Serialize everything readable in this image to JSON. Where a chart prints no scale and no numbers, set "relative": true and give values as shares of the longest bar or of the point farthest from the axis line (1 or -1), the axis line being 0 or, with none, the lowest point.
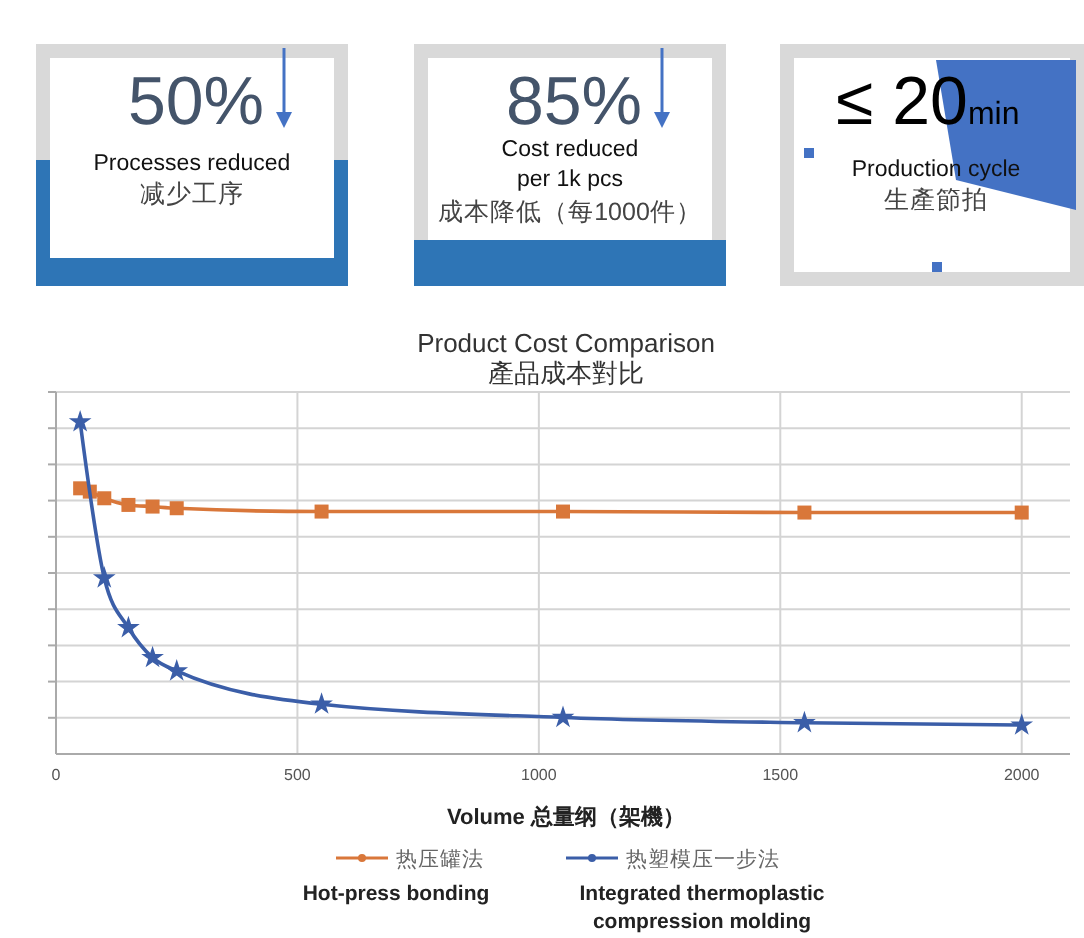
{
  "chart_data": [
    {
      "type": "other",
      "title": "50%",
      "annotations": [
        "Processes reduced",
        "减少工序"
      ]
    },
    {
      "type": "other",
      "title": "85%",
      "annotations": [
        "Cost reduced\nper 1k pcs",
        "成本降低（每1000件）"
      ]
    },
    {
      "type": "other",
      "title": "≤ 20",
      "subtitle": "min",
      "annotations": [
        "Production cycle",
        "生產節拍"
      ]
    },
    {
      "type": "line",
      "title": "Product Cost Comparison\n產品成本對比",
      "xlabel": "Volume 总量纲（架機）",
      "relative": true,
      "xlim": [
        0,
        2100
      ],
      "xticks": [
        0,
        500,
        1000,
        1500,
        2000
      ],
      "grid": true,
      "legend": "bottom",
      "series": [
        {
          "name": "热压罐法\nHot-press bonding",
          "color": "#d9773a",
          "marker": "square",
          "x": [
            50,
            70,
            100,
            150,
            200,
            250,
            550,
            1050,
            1550,
            2000
          ],
          "values": [
            0.8,
            0.79,
            0.77,
            0.75,
            0.745,
            0.74,
            0.73,
            0.73,
            0.727,
            0.727
          ]
        },
        {
          "name": "热塑模压一步法\nIntegrated thermoplastic\ncompression molding",
          "color": "#3b5ea8",
          "marker": "star",
          "x": [
            50,
            100,
            150,
            200,
            250,
            550,
            1050,
            1550,
            2000
          ],
          "values": [
            1,
            0.53,
            0.38,
            0.29,
            0.25,
            0.15,
            0.11,
            0.094,
            0.087
          ]
        }
      ]
    }
  ]
}
